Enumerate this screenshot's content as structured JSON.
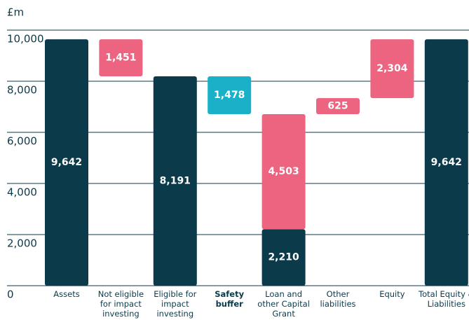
{
  "chart_data": {
    "type": "waterfall",
    "y_label": "£m",
    "ylim": [
      0,
      10000
    ],
    "yticks": [
      0,
      {
        "value": 2000,
        "label": "2,000"
      },
      {
        "value": 4000,
        "label": "4,000"
      },
      {
        "value": 6000,
        "label": "6,000"
      },
      {
        "value": 8000,
        "label": "8,000"
      },
      {
        "value": 10000,
        "label": "10,000"
      }
    ],
    "grid": true,
    "bars": [
      {
        "category": "Assets",
        "kind": "total",
        "values": [
          9642
        ],
        "value_labels": [
          "9,642"
        ],
        "colors": [
          "#0b3a4a"
        ]
      },
      {
        "category": "Not eligible for impact investing",
        "kind": "decrease",
        "values": [
          1451
        ],
        "value_labels": [
          "1,451"
        ],
        "colors": [
          "#ec6480"
        ]
      },
      {
        "category": "Eligible for impact investing",
        "kind": "total",
        "values": [
          8191
        ],
        "value_labels": [
          "8,191"
        ],
        "colors": [
          "#0b3a4a"
        ]
      },
      {
        "category": "Safety buffer",
        "kind": "decrease",
        "values": [
          1478
        ],
        "value_labels": [
          "1,478"
        ],
        "colors": [
          "#1ab0c8"
        ],
        "bold": true
      },
      {
        "category": "Loan and other Capital Grant",
        "kind": "total",
        "values": [
          2210,
          4503
        ],
        "value_labels": [
          "2,210",
          "4,503"
        ],
        "colors": [
          "#0b3a4a",
          "#ec6480"
        ]
      },
      {
        "category": "Other liabilities",
        "kind": "increase",
        "values": [
          625
        ],
        "value_labels": [
          "625"
        ],
        "colors": [
          "#ec6480"
        ]
      },
      {
        "category": "Equity",
        "kind": "increase",
        "values": [
          2304
        ],
        "value_labels": [
          "2,304"
        ],
        "colors": [
          "#ec6480"
        ]
      },
      {
        "category": "Total Equity & Liabilities",
        "kind": "total",
        "values": [
          9642
        ],
        "value_labels": [
          "9,642"
        ],
        "colors": [
          "#0b3a4a"
        ]
      }
    ]
  }
}
